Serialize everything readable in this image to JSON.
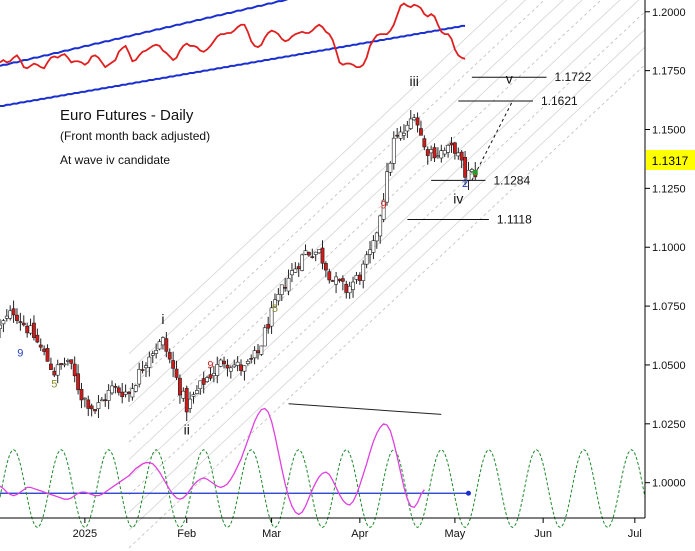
{
  "chart_data": {
    "type": "candlestick",
    "title": "Euro Futures - Daily",
    "subtitle": "(Front month back adjusted)",
    "annotation": "At wave iv candidate",
    "last_price_label": "1.1317",
    "ylim": [
      0.985,
      1.205
    ],
    "xlim": [
      0,
      190
    ],
    "y_ticks": [
      {
        "value": 1.0,
        "label": "1.0000"
      },
      {
        "value": 1.025,
        "label": "1.0250"
      },
      {
        "value": 1.05,
        "label": "1.0500"
      },
      {
        "value": 1.075,
        "label": "1.0750"
      },
      {
        "value": 1.1,
        "label": "1.1000"
      },
      {
        "value": 1.125,
        "label": "1.1250"
      },
      {
        "value": 1.15,
        "label": "1.1500"
      },
      {
        "value": 1.175,
        "label": "1.1750"
      },
      {
        "value": 1.2,
        "label": "1.2000"
      }
    ],
    "x_ticks": [
      {
        "day": 25,
        "label": "2025"
      },
      {
        "day": 55,
        "label": "Feb"
      },
      {
        "day": 80,
        "label": "Mar"
      },
      {
        "day": 106,
        "label": "Apr"
      },
      {
        "day": 134,
        "label": "May"
      },
      {
        "day": 160,
        "label": "Jun"
      },
      {
        "day": 187,
        "label": "Jul"
      }
    ],
    "wave_labels": [
      {
        "text": "i",
        "day": 48,
        "price": 1.0675
      },
      {
        "text": "ii",
        "day": 55,
        "price": 1.0205
      },
      {
        "text": "iii",
        "day": 122,
        "price": 1.1685
      },
      {
        "text": "iv",
        "day": 135,
        "price": 1.1185
      },
      {
        "text": "v",
        "day": 150,
        "price": 1.1695
      }
    ],
    "sequence_counts": [
      {
        "text": "9",
        "day": 6,
        "price": 1.0535,
        "color": "#1f3fbf"
      },
      {
        "text": "5",
        "day": 16,
        "price": 1.0405,
        "color": "#8a8a2a"
      },
      {
        "text": "9",
        "day": 62,
        "price": 1.0485,
        "color": "#cc2222"
      },
      {
        "text": "5",
        "day": 81,
        "price": 1.0725,
        "color": "#8a8a2a"
      },
      {
        "text": "9",
        "day": 113,
        "price": 1.1165,
        "color": "#cc2222"
      },
      {
        "text": "2",
        "day": 137,
        "price": 1.1255,
        "color": "#1f3fbf"
      }
    ],
    "target_lines": [
      {
        "label": "1.1722",
        "price": 1.1722,
        "day_start": 139,
        "day_end": 161
      },
      {
        "label": "1.1621",
        "price": 1.1621,
        "day_start": 135,
        "day_end": 157
      },
      {
        "label": "1.1284",
        "price": 1.1284,
        "day_start": 127,
        "day_end": 143
      },
      {
        "label": "1.1118",
        "price": 1.1118,
        "day_start": 120,
        "day_end": 144
      }
    ],
    "projection": {
      "from": [
        139,
        1.1284
      ],
      "to": [
        151,
        1.1621
      ]
    },
    "channel": {
      "slope": 0.00135,
      "intercepts": [
        0.921,
        0.9285,
        0.936,
        0.9435,
        0.951,
        0.9585,
        0.966,
        0.9735,
        0.981,
        0.9885,
        0.996,
        1.0035
      ],
      "day_start": 38,
      "day_end": 190
    },
    "divergence_line": {
      "from": [
        85,
        1.0335
      ],
      "to": [
        130,
        1.029
      ]
    },
    "candles": [],
    "top_panel": {
      "red_line": [
        1.1785,
        1.1795,
        1.1785,
        1.179,
        1.1805,
        1.1815,
        1.1795,
        1.1765,
        1.176,
        1.177,
        1.178,
        1.1775,
        1.1765,
        1.176,
        1.1785,
        1.1805,
        1.181,
        1.1805,
        1.1815,
        1.182,
        1.1805,
        1.1785,
        1.179,
        1.179,
        1.1785,
        1.1775,
        1.1785,
        1.181,
        1.1815,
        1.1805,
        1.1785,
        1.1765,
        1.1775,
        1.1785,
        1.1795,
        1.183,
        1.1845,
        1.1855,
        1.1825,
        1.179,
        1.1795,
        1.1815,
        1.183,
        1.1835,
        1.1845,
        1.1855,
        1.186,
        1.1855,
        1.1835,
        1.1825,
        1.181,
        1.1795,
        1.1805,
        1.1835,
        1.1855,
        1.1865,
        1.1855,
        1.1855,
        1.185,
        1.1835,
        1.183,
        1.184,
        1.1855,
        1.1875,
        1.1895,
        1.1905,
        1.1905,
        1.191,
        1.191,
        1.192,
        1.1935,
        1.1945,
        1.1945,
        1.1915,
        1.1875,
        1.1855,
        1.185,
        1.186,
        1.189,
        1.191,
        1.192,
        1.1915,
        1.1905,
        1.1885,
        1.1875,
        1.188,
        1.1895,
        1.1905,
        1.191,
        1.1915,
        1.191,
        1.191,
        1.192,
        1.1935,
        1.1945,
        1.1935,
        1.1915,
        1.1905,
        1.188,
        1.1835,
        1.1785,
        1.1775,
        1.178,
        1.178,
        1.1775,
        1.1765,
        1.1765,
        1.1775,
        1.1805,
        1.1855,
        1.188,
        1.19,
        1.1905,
        1.1905,
        1.1905,
        1.192,
        1.1945,
        1.1985,
        1.2025,
        1.2035,
        1.2025,
        1.202,
        1.203,
        1.2025,
        1.2015,
        1.199,
        1.198,
        1.199,
        1.198,
        1.1945,
        1.1915,
        1.1905,
        1.1905,
        1.1885,
        1.184,
        1.1815,
        1.1805,
        1.18
      ],
      "blue_upper": [
        1.177,
        1.1775,
        1.1775,
        1.178,
        1.1785,
        1.1785,
        1.179,
        1.1795,
        1.1795,
        1.18,
        1.1805,
        1.1805,
        1.181,
        1.1815,
        1.1815,
        1.182,
        1.1825,
        1.1825,
        1.183,
        1.1835,
        1.1835,
        1.184,
        1.1845,
        1.1845,
        1.185,
        1.1855,
        1.1855,
        1.186,
        1.1865,
        1.1865,
        1.187,
        1.1875,
        1.1875,
        1.188,
        1.1885,
        1.1885,
        1.189,
        1.1895,
        1.1895,
        1.19,
        1.1905,
        1.1905,
        1.191,
        1.1915,
        1.1915,
        1.192,
        1.1925,
        1.1925,
        1.193,
        1.1935,
        1.1935,
        1.194,
        1.1945,
        1.1945,
        1.195,
        1.1955,
        1.1955,
        1.196,
        1.1965,
        1.1965,
        1.197,
        1.1975,
        1.1975,
        1.198,
        1.1985,
        1.1985,
        1.199,
        1.1995,
        1.1995,
        1.2,
        1.2005,
        1.2005,
        1.201,
        1.2015,
        1.2015,
        1.202,
        1.2025,
        1.2025,
        1.203,
        1.2035,
        1.2035,
        1.204,
        1.2045,
        1.2045,
        1.205,
        1.2055,
        1.2055,
        1.206,
        1.2065,
        1.2065,
        1.207,
        1.2075,
        1.2075,
        1.208,
        1.2085,
        1.2085,
        1.209,
        1.2095,
        1.2095,
        1.21,
        1.2105,
        1.2105,
        1.211,
        1.2115,
        1.2115,
        1.212,
        1.2125,
        1.2125,
        1.213,
        1.2135,
        1.2135,
        1.214,
        1.2145,
        1.2145,
        1.215,
        1.2155,
        1.2155,
        1.216,
        1.2165,
        1.2165,
        1.217,
        1.2175,
        1.2175,
        1.218,
        1.2185,
        1.2185,
        1.219,
        1.2195,
        1.2195,
        1.22,
        1.2205,
        1.2205,
        1.221,
        1.2215,
        1.2215,
        1.222
      ],
      "blue_lower": [
        1.16,
        1.16,
        1.1605,
        1.1605,
        1.161,
        1.161,
        1.1615,
        1.1615,
        1.162,
        1.162,
        1.1625,
        1.1625,
        1.163,
        1.163,
        1.1635,
        1.1635,
        1.164,
        1.164,
        1.1645,
        1.1645,
        1.165,
        1.165,
        1.1655,
        1.1655,
        1.166,
        1.166,
        1.1665,
        1.1665,
        1.167,
        1.167,
        1.1675,
        1.1675,
        1.168,
        1.168,
        1.1685,
        1.1685,
        1.169,
        1.169,
        1.1695,
        1.1695,
        1.17,
        1.17,
        1.1705,
        1.1705,
        1.171,
        1.171,
        1.1715,
        1.1715,
        1.172,
        1.172,
        1.1725,
        1.1725,
        1.173,
        1.173,
        1.1735,
        1.1735,
        1.174,
        1.174,
        1.1745,
        1.1745,
        1.175,
        1.175,
        1.1755,
        1.1755,
        1.176,
        1.176,
        1.1765,
        1.1765,
        1.177,
        1.177,
        1.1775,
        1.1775,
        1.178,
        1.178,
        1.1785,
        1.1785,
        1.179,
        1.179,
        1.1795,
        1.1795,
        1.18,
        1.18,
        1.1805,
        1.1805,
        1.181,
        1.181,
        1.1815,
        1.1815,
        1.182,
        1.182,
        1.1825,
        1.1825,
        1.183,
        1.183,
        1.1835,
        1.1835,
        1.184,
        1.184,
        1.1845,
        1.1845,
        1.185,
        1.185,
        1.1855,
        1.1855,
        1.186,
        1.186,
        1.1865,
        1.1865,
        1.187,
        1.187,
        1.1875,
        1.1875,
        1.188,
        1.188,
        1.1885,
        1.1885,
        1.189,
        1.189,
        1.1895,
        1.1895,
        1.19,
        1.19,
        1.1905,
        1.1905,
        1.191,
        1.191,
        1.1915,
        1.1915,
        1.192,
        1.192,
        1.1925,
        1.1925,
        1.193,
        1.193,
        1.1935,
        1.1935,
        1.194,
        1.194
      ]
    },
    "bottom_panel": {
      "oscillator_baseline": 0.9955,
      "magenta": [
        0.9985,
        0.9975,
        0.996,
        0.995,
        0.9945,
        0.995,
        0.996,
        0.997,
        0.998,
        0.998,
        0.9975,
        0.997,
        0.9965,
        0.996,
        0.9955,
        0.995,
        0.9945,
        0.994,
        0.9935,
        0.993,
        0.993,
        0.9935,
        0.9945,
        0.9955,
        0.996,
        0.996,
        0.9955,
        0.995,
        0.9945,
        0.9945,
        0.995,
        0.996,
        0.997,
        0.998,
        0.999,
        1.0,
        1.001,
        1.002,
        1.003,
        1.0045,
        1.006,
        1.007,
        1.008,
        1.0085,
        1.0085,
        1.008,
        1.0065,
        1.0045,
        1.002,
        0.9995,
        0.997,
        0.995,
        0.9935,
        0.993,
        0.9935,
        0.995,
        0.997,
        0.999,
        1.0005,
        1.0015,
        1.002,
        1.0015,
        1.0005,
        0.9995,
        0.9985,
        0.998,
        0.9985,
        0.9995,
        1.0015,
        1.004,
        1.007,
        1.01,
        1.014,
        1.018,
        1.022,
        1.026,
        1.029,
        1.031,
        1.0315,
        1.03,
        1.026,
        1.02,
        1.013,
        1.006,
        0.9995,
        0.994,
        0.99,
        0.9875,
        0.9865,
        0.9875,
        0.99,
        0.9935,
        0.997,
        1.0,
        1.0025,
        1.004,
        1.0045,
        1.0035,
        1.001,
        0.998,
        0.995,
        0.9925,
        0.991,
        0.9905,
        0.992,
        0.995,
        0.999,
        1.0035,
        1.008,
        1.013,
        1.0175,
        1.021,
        1.0235,
        1.025,
        1.0245,
        1.022,
        1.017,
        1.011,
        1.0045,
        0.998,
        0.993,
        0.99,
        0.9895,
        0.9915,
        0.995,
        0.997
      ],
      "green_period": 14,
      "green_amplitude": 0.0165,
      "green_center": 0.9975,
      "green_phase": 4
    }
  }
}
